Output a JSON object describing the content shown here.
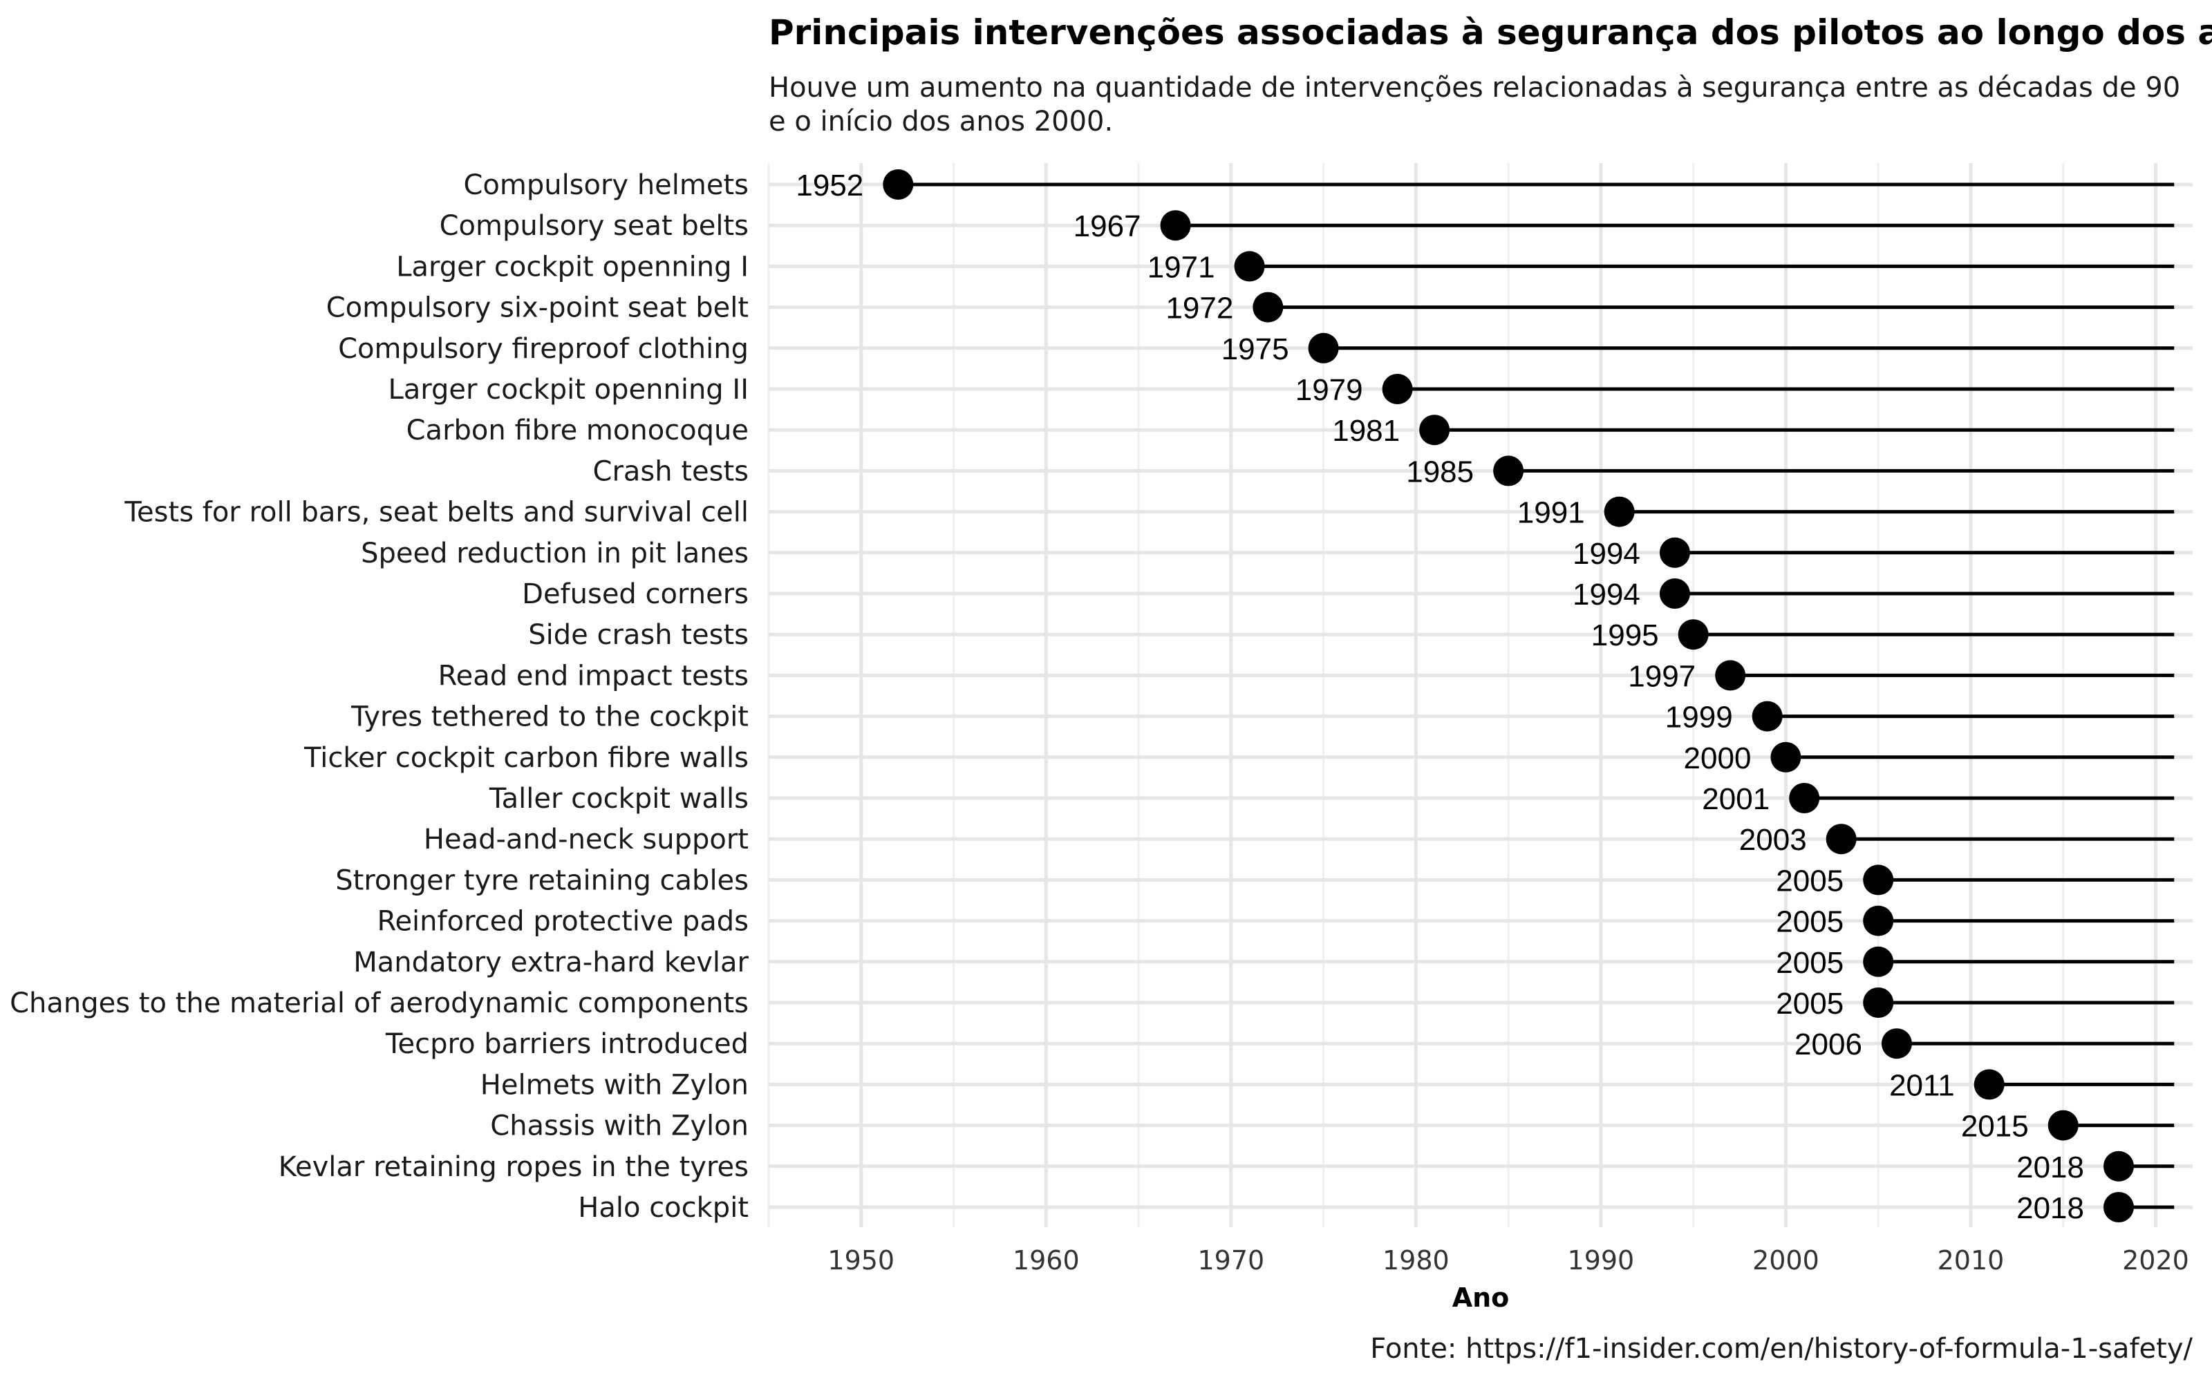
{
  "chart_data": {
    "type": "lollipop",
    "title": "Principais intervenções associadas à segurança dos pilotos ao longo dos anos",
    "subtitle_lines": [
      "Houve um aumento na quantidade de intervenções relacionadas à segurança entre as décadas de 90",
      "e o início dos anos 2000."
    ],
    "xlabel": "Ano",
    "caption": "Fonte: https://f1-insider.com/en/history-of-formula-1-safety/",
    "xlim": [
      1945,
      2022
    ],
    "segment_end": 2021,
    "xticks": [
      1950,
      1960,
      1970,
      1980,
      1990,
      2000,
      2010,
      2020
    ],
    "categories": [
      "Compulsory helmets",
      "Compulsory seat belts",
      "Larger cockpit openning I",
      "Compulsory six-point seat belt",
      "Compulsory fireproof clothing",
      "Larger cockpit openning II",
      "Carbon fibre monocoque",
      "Crash tests",
      "Tests for roll bars, seat belts and survival cell",
      "Speed reduction in pit lanes",
      "Defused corners",
      "Side crash tests",
      "Read end impact tests",
      "Tyres tethered to the cockpit",
      "Ticker cockpit carbon fibre walls",
      "Taller cockpit walls",
      "Head-and-neck support",
      "Stronger tyre retaining cables",
      "Reinforced protective pads",
      "Mandatory extra-hard kevlar",
      "Changes to the material of aerodynamic components",
      "Tecpro barriers introduced",
      "Helmets with Zylon",
      "Chassis with Zylon",
      "Kevlar retaining ropes in the tyres",
      "Halo cockpit"
    ],
    "values": [
      1952,
      1967,
      1971,
      1972,
      1975,
      1979,
      1981,
      1985,
      1991,
      1994,
      1994,
      1995,
      1997,
      1999,
      2000,
      2001,
      2003,
      2005,
      2005,
      2005,
      2005,
      2006,
      2011,
      2015,
      2018,
      2018
    ],
    "grid": true,
    "legend": "none"
  }
}
